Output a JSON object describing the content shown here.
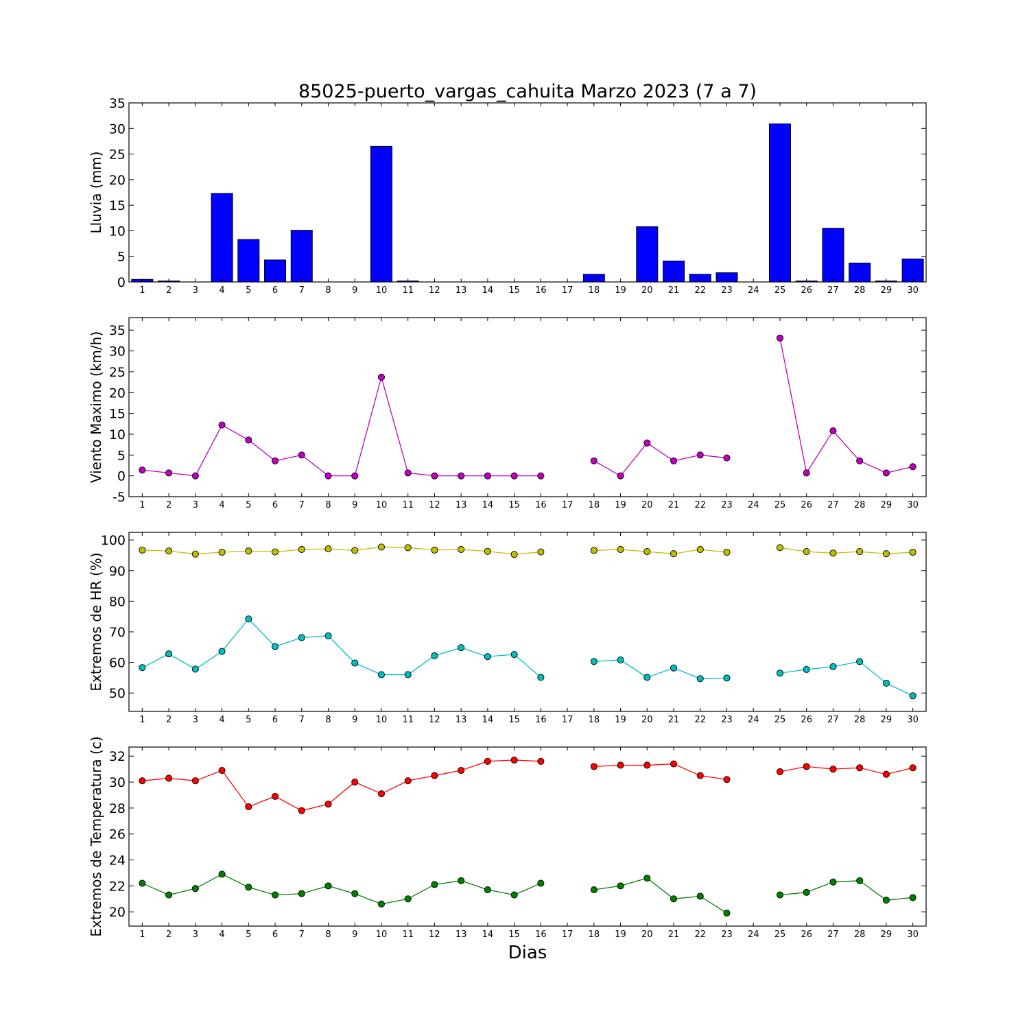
{
  "title": "85025-puerto_vargas_cahuita Marzo 2023  (7 a 7)",
  "xlabel": "Dias",
  "chart_data": [
    {
      "type": "bar",
      "ylabel": "Lluvia (mm)",
      "ylim": [
        0,
        35
      ],
      "yticks": [
        0,
        5,
        10,
        15,
        20,
        25,
        30,
        35
      ],
      "x": [
        1,
        2,
        3,
        4,
        5,
        6,
        7,
        8,
        9,
        10,
        11,
        12,
        13,
        14,
        15,
        16,
        17,
        18,
        19,
        20,
        21,
        22,
        23,
        24,
        25,
        26,
        27,
        28,
        29,
        30
      ],
      "series": [
        {
          "color": "#0000ff",
          "values": [
            0.5,
            0.2,
            0,
            17.3,
            8.3,
            4.3,
            10.1,
            0,
            0,
            26.5,
            0.2,
            0,
            0,
            0,
            0,
            0,
            null,
            1.5,
            0,
            10.8,
            4.1,
            1.5,
            1.8,
            null,
            30.9,
            0.2,
            10.5,
            3.7,
            0.2,
            4.5
          ]
        }
      ]
    },
    {
      "type": "line",
      "ylabel": "Viento Maximo (km/h)",
      "ylim": [
        -5,
        38
      ],
      "yticks": [
        -5,
        0,
        5,
        10,
        15,
        20,
        25,
        30,
        35
      ],
      "x": [
        1,
        2,
        3,
        4,
        5,
        6,
        7,
        8,
        9,
        10,
        11,
        12,
        13,
        14,
        15,
        16,
        17,
        18,
        19,
        20,
        21,
        22,
        23,
        24,
        25,
        26,
        27,
        28,
        29,
        30
      ],
      "series": [
        {
          "color": "#bf00bf",
          "values": [
            1.4,
            0.7,
            0,
            12.2,
            8.6,
            3.6,
            5,
            0,
            0,
            23.7,
            0.7,
            0,
            0,
            0,
            0,
            0,
            null,
            3.6,
            0,
            7.9,
            3.6,
            5,
            4.3,
            null,
            33.1,
            0.7,
            10.8,
            3.6,
            0.7,
            2.2
          ]
        }
      ]
    },
    {
      "type": "line",
      "ylabel": "Extremos de HR (%)",
      "ylim": [
        44,
        102.5
      ],
      "yticks": [
        50,
        60,
        70,
        80,
        90,
        100
      ],
      "x": [
        1,
        2,
        3,
        4,
        5,
        6,
        7,
        8,
        9,
        10,
        11,
        12,
        13,
        14,
        15,
        16,
        17,
        18,
        19,
        20,
        21,
        22,
        23,
        24,
        25,
        26,
        27,
        28,
        29,
        30
      ],
      "series": [
        {
          "color": "#bfbf00",
          "values": [
            96.7,
            96.4,
            95.4,
            96,
            96.4,
            96.1,
            96.9,
            97.1,
            96.6,
            97.7,
            97.5,
            96.7,
            96.9,
            96.3,
            95.3,
            96.1,
            null,
            96.6,
            96.9,
            96.2,
            95.5,
            96.9,
            96,
            null,
            97.5,
            96.2,
            95.7,
            96.2,
            95.5,
            96
          ]
        },
        {
          "color": "#00bfbf",
          "values": [
            58.3,
            62.8,
            57.8,
            63.6,
            74.2,
            65.2,
            68.1,
            68.7,
            59.8,
            56,
            56,
            62.2,
            64.8,
            61.9,
            62.6,
            55.1,
            null,
            60.3,
            60.8,
            55.1,
            58.2,
            54.7,
            54.9,
            null,
            56.5,
            57.7,
            58.6,
            60.3,
            53.2,
            49.1
          ]
        }
      ]
    },
    {
      "type": "line",
      "ylabel": "Extremos de Temperatura (c)",
      "ylim": [
        18.9,
        32.7
      ],
      "yticks": [
        20,
        22,
        24,
        26,
        28,
        30,
        32
      ],
      "x": [
        1,
        2,
        3,
        4,
        5,
        6,
        7,
        8,
        9,
        10,
        11,
        12,
        13,
        14,
        15,
        16,
        17,
        18,
        19,
        20,
        21,
        22,
        23,
        24,
        25,
        26,
        27,
        28,
        29,
        30
      ],
      "series": [
        {
          "color": "#ff0000",
          "values": [
            30.1,
            30.3,
            30.1,
            30.9,
            28.1,
            28.9,
            27.8,
            28.3,
            30,
            29.1,
            30.1,
            30.5,
            30.9,
            31.6,
            31.7,
            31.6,
            null,
            31.2,
            31.3,
            31.3,
            31.4,
            30.5,
            30.2,
            null,
            30.8,
            31.2,
            31,
            31.1,
            30.6,
            31.1
          ]
        },
        {
          "color": "#008000",
          "values": [
            22.2,
            21.3,
            21.8,
            22.9,
            21.9,
            21.3,
            21.4,
            22,
            21.4,
            20.6,
            21,
            22.1,
            22.4,
            21.7,
            21.3,
            22.2,
            null,
            21.7,
            22,
            22.6,
            21,
            21.2,
            19.9,
            null,
            21.3,
            21.5,
            22.3,
            22.4,
            20.9,
            21.1
          ]
        }
      ]
    }
  ]
}
